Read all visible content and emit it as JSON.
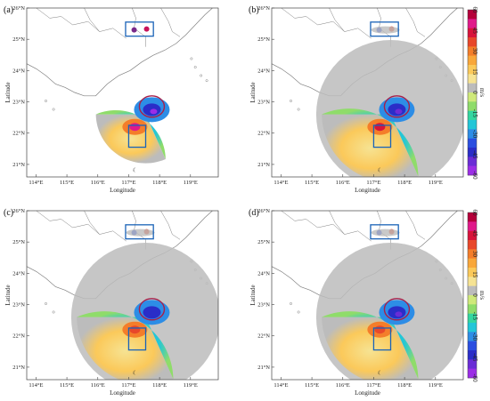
{
  "chart_data": [
    {
      "type": "heatmap",
      "panel": "(a)",
      "xlabel": "Longitude",
      "ylabel": "Latitude",
      "x_ticks": [
        "114°E",
        "115°E",
        "116°E",
        "117°E",
        "118°E",
        "119°E"
      ],
      "y_ticks": [
        "21°N",
        "22°N",
        "23°N",
        "24°N",
        "25°N",
        "26°N"
      ],
      "xlim": [
        113.7,
        119.9
      ],
      "ylim": [
        20.6,
        26.0
      ],
      "colorbar": false,
      "fields": {
        "low_lobe": {
          "lon": 117.75,
          "lat": 22.75,
          "min_velocity": -55
        },
        "high_lobe": {
          "lon": 117.2,
          "lat": 22.2,
          "max_velocity": 60
        }
      },
      "highlight_circle": {
        "lon": 117.75,
        "lat": 22.85
      },
      "boxes": [
        {
          "lon": [
            116.9,
            117.8
          ],
          "lat": [
            25.1,
            25.55
          ]
        },
        {
          "lon": [
            117.0,
            117.55
          ],
          "lat": [
            21.55,
            22.25
          ]
        }
      ],
      "marker_symbol": "☾"
    },
    {
      "type": "heatmap",
      "panel": "(b)",
      "xlabel": "Longitude",
      "ylabel": "Latitude",
      "x_ticks": [
        "114°E",
        "115°E",
        "116°E",
        "117°E",
        "118°E",
        "119°E"
      ],
      "y_ticks": [
        "21°N",
        "22°N",
        "23°N",
        "24°N",
        "25°N",
        "26°N"
      ],
      "xlim": [
        113.7,
        119.9
      ],
      "ylim": [
        20.6,
        26.0
      ],
      "colorbar": true,
      "fields": {
        "low_lobe": {
          "lon": 117.75,
          "lat": 22.75,
          "min_velocity": -50
        },
        "high_lobe": {
          "lon": 117.2,
          "lat": 22.2,
          "max_velocity": 55
        }
      },
      "highlight_circle": {
        "lon": 117.75,
        "lat": 22.85
      },
      "boxes": [
        {
          "lon": [
            116.9,
            117.8
          ],
          "lat": [
            25.1,
            25.55
          ]
        },
        {
          "lon": [
            117.0,
            117.55
          ],
          "lat": [
            21.55,
            22.25
          ]
        }
      ],
      "marker_symbol": "☾"
    },
    {
      "type": "heatmap",
      "panel": "(c)",
      "xlabel": "Longitude",
      "ylabel": "Latitude",
      "x_ticks": [
        "114°E",
        "115°E",
        "116°E",
        "117°E",
        "118°E",
        "119°E"
      ],
      "y_ticks": [
        "21°N",
        "22°N",
        "23°N",
        "24°N",
        "25°N",
        "26°N"
      ],
      "xlim": [
        113.7,
        119.9
      ],
      "ylim": [
        20.6,
        26.0
      ],
      "colorbar": false,
      "fields": {
        "low_lobe": {
          "lon": 117.75,
          "lat": 22.75,
          "min_velocity": -45
        },
        "high_lobe": {
          "lon": 117.2,
          "lat": 22.2,
          "max_velocity": 50
        }
      },
      "highlight_circle": {
        "lon": 117.75,
        "lat": 22.85
      },
      "boxes": [
        {
          "lon": [
            116.9,
            117.8
          ],
          "lat": [
            25.1,
            25.55
          ]
        },
        {
          "lon": [
            117.0,
            117.55
          ],
          "lat": [
            21.55,
            22.25
          ]
        }
      ],
      "marker_symbol": "☾"
    },
    {
      "type": "heatmap",
      "panel": "(d)",
      "xlabel": "Longitude",
      "ylabel": "Latitude",
      "x_ticks": [
        "114°E",
        "115°E",
        "116°E",
        "117°E",
        "118°E",
        "119°E"
      ],
      "y_ticks": [
        "21°N",
        "22°N",
        "23°N",
        "24°N",
        "25°N",
        "26°N"
      ],
      "xlim": [
        113.7,
        119.9
      ],
      "ylim": [
        20.6,
        26.0
      ],
      "colorbar": true,
      "fields": {
        "low_lobe": {
          "lon": 117.75,
          "lat": 22.75,
          "min_velocity": -50
        },
        "high_lobe": {
          "lon": 117.2,
          "lat": 22.2,
          "max_velocity": 50
        }
      },
      "highlight_circle": {
        "lon": 117.75,
        "lat": 22.85
      },
      "boxes": [
        {
          "lon": [
            116.9,
            117.8
          ],
          "lat": [
            25.1,
            25.55
          ]
        },
        {
          "lon": [
            117.0,
            117.55
          ],
          "lat": [
            21.55,
            22.25
          ]
        }
      ],
      "marker_symbol": "☾"
    }
  ],
  "colorbar": {
    "unit": "m/s",
    "ticks": [
      "60",
      "45",
      "30",
      "15",
      "0",
      "-15",
      "-30",
      "-45",
      "-60"
    ],
    "colors": [
      "#b5003a",
      "#e0198a",
      "#d8133a",
      "#e8472a",
      "#f47d2a",
      "#f9a73a",
      "#fbc95a",
      "#f6e393",
      "#bcbcbc",
      "#cfe97a",
      "#8fdc6a",
      "#33d6a0",
      "#22c6d8",
      "#2d8de6",
      "#2a4ee0",
      "#2a2dc8",
      "#6a2cd6",
      "#9b2de6"
    ]
  },
  "colors": {
    "coast": "#808080",
    "box": "#1a63b8",
    "circle": "#a8204a",
    "no_data": "#bcbcbc"
  }
}
